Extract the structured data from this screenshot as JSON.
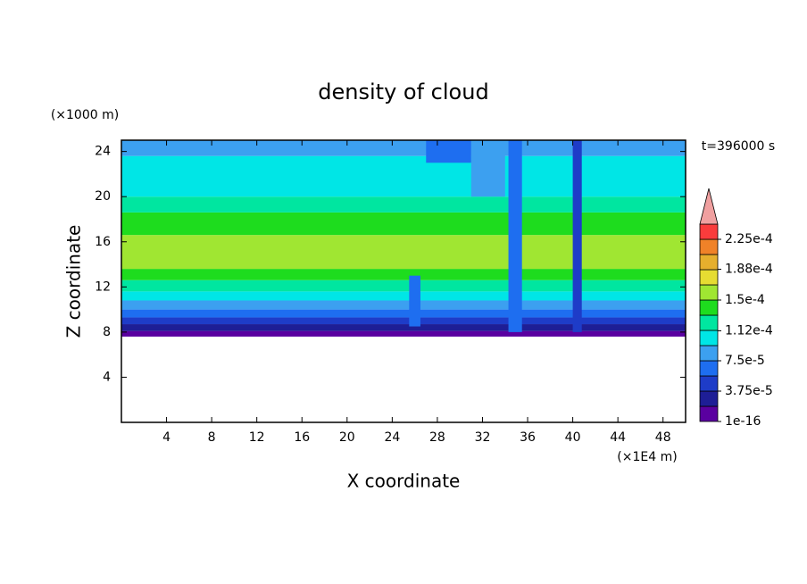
{
  "chart_data": {
    "type": "contour",
    "title": "density of cloud",
    "x_label": "X coordinate",
    "y_label": "Z coordinate",
    "x_unit": "(×1E4 m)",
    "y_unit": "(×1000 m)",
    "time_label": "t=396000 s",
    "xlim": [
      0,
      50
    ],
    "xticks": [
      4,
      8,
      12,
      16,
      20,
      24,
      28,
      32,
      36,
      40,
      44,
      48
    ],
    "ylim": [
      0,
      25
    ],
    "yticks": [
      4,
      8,
      12,
      16,
      20,
      24
    ],
    "profile": {
      "z_edges": [
        7.6,
        8.1,
        8.7,
        9.3,
        10,
        10.8,
        11.6,
        12.6,
        13.6,
        16.6,
        18.6,
        20,
        23.6,
        25
      ],
      "values": [
        1e-05,
        3e-05,
        4.5e-05,
        6.5e-05,
        8.5e-05,
        0.0001,
        0.00012,
        0.00014,
        0.00016,
        0.00014,
        0.00012,
        0.0001,
        8.5e-05
      ]
    },
    "plumes": [
      {
        "x": [
          25.5,
          26.5
        ],
        "z": [
          8.5,
          13
        ],
        "value": 6e-05
      },
      {
        "x": [
          27,
          31
        ],
        "z": [
          23,
          25
        ],
        "value": 6.5e-05
      },
      {
        "x": [
          31,
          34
        ],
        "z": [
          20,
          25
        ],
        "value": 8.5e-05
      },
      {
        "x": [
          34.3,
          35.5
        ],
        "z": [
          8,
          25
        ],
        "value": 6e-05
      },
      {
        "x": [
          40,
          40.8
        ],
        "z": [
          8,
          25
        ],
        "value": 4e-05
      }
    ],
    "colorbar": {
      "levels": [
        1e-16,
        1.875e-05,
        3.75e-05,
        5.625e-05,
        7.5e-05,
        9.375e-05,
        0.0001125,
        0.00013125,
        0.00015,
        0.00016875,
        0.0001875,
        0.00020625,
        0.000225,
        0.00024375
      ],
      "colors": [
        "#5a00a0",
        "#1e1e96",
        "#1e3cc8",
        "#1e6ef0",
        "#3ca0f0",
        "#00e6e6",
        "#00e6a0",
        "#1edc1e",
        "#a0e632",
        "#e6dc32",
        "#e6af2d",
        "#f08228",
        "#fa3c3c"
      ],
      "extend_color": "#f0a0a0",
      "ticks": [
        {
          "value": 1e-16,
          "label": "1e-16"
        },
        {
          "value": 3.75e-05,
          "label": "3.75e-5"
        },
        {
          "value": 7.5e-05,
          "label": "7.5e-5"
        },
        {
          "value": 0.000112,
          "label": "1.12e-4"
        },
        {
          "value": 0.00015,
          "label": "1.5e-4"
        },
        {
          "value": 0.000188,
          "label": "1.88e-4"
        },
        {
          "value": 0.000225,
          "label": "2.25e-4"
        }
      ]
    }
  }
}
